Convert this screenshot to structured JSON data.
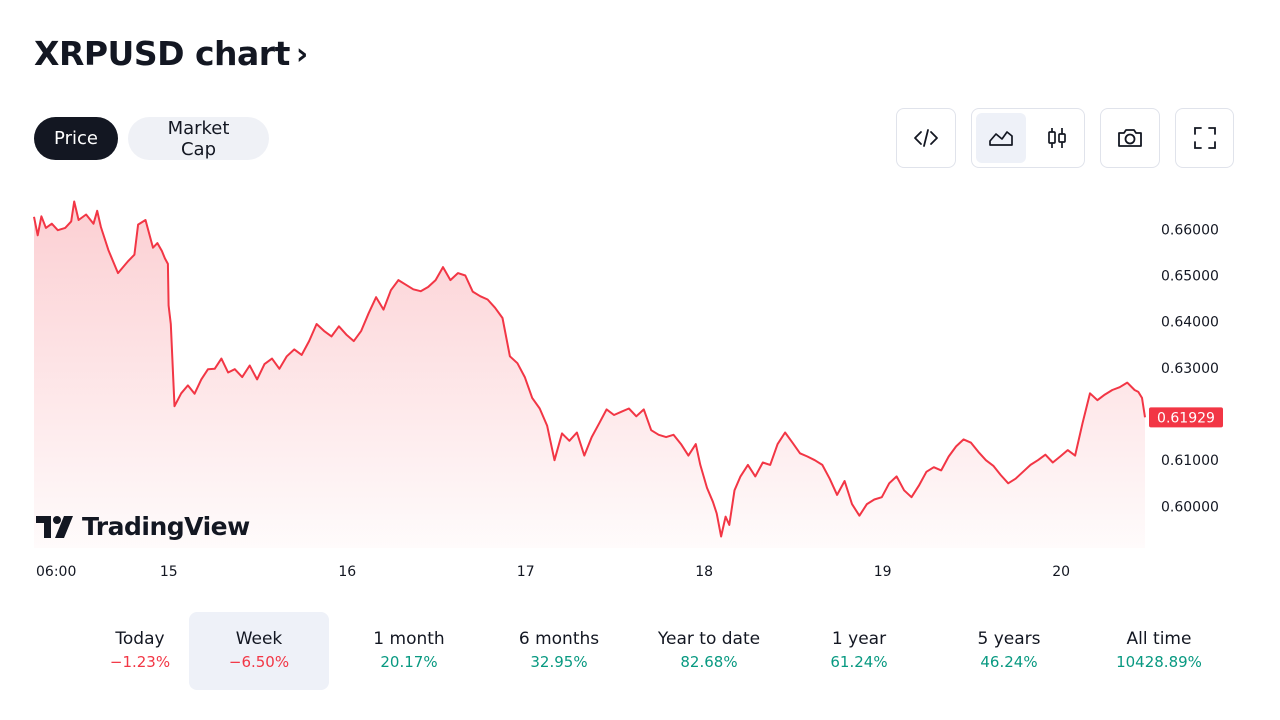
{
  "header": {
    "title": "XRPUSD chart",
    "chevron": "›"
  },
  "tabs": [
    {
      "label": "Price",
      "active": true
    },
    {
      "label": "Market Cap",
      "active": false
    }
  ],
  "toolbar": {
    "embed_icon": "code-icon",
    "line_icon": "area-chart-icon",
    "candle_icon": "candlestick-icon",
    "snapshot_icon": "camera-icon",
    "fullscreen_icon": "fullscreen-icon"
  },
  "brand": {
    "name": "TradingView"
  },
  "colors": {
    "line": "#f23645",
    "positive": "#089981",
    "negative": "#f23645",
    "dark": "#131722"
  },
  "chart_data": {
    "type": "area",
    "ylim": [
      0.591,
      0.6685
    ],
    "y_ticks": [
      {
        "value": 0.66,
        "label": "0.66000"
      },
      {
        "value": 0.65,
        "label": "0.65000"
      },
      {
        "value": 0.64,
        "label": "0.64000"
      },
      {
        "value": 0.63,
        "label": "0.63000"
      },
      {
        "value": 0.61,
        "label": "0.61000"
      },
      {
        "value": 0.6,
        "label": "0.60000"
      }
    ],
    "x_ticks": [
      {
        "t": 0,
        "label": "06:00"
      },
      {
        "t": 18,
        "label": "15"
      },
      {
        "t": 42,
        "label": "16"
      },
      {
        "t": 66,
        "label": "17"
      },
      {
        "t": 90,
        "label": "18"
      },
      {
        "t": 114,
        "label": "19"
      },
      {
        "t": 138,
        "label": "20"
      }
    ],
    "t_range": [
      0,
      149.4
    ],
    "last_price": {
      "value": 0.61929,
      "label": "0.61929"
    },
    "series": [
      {
        "values": [
          [
            0,
            0.6627
          ],
          [
            0.5,
            0.6587
          ],
          [
            1,
            0.6628
          ],
          [
            1.6,
            0.6603
          ],
          [
            2.4,
            0.6612
          ],
          [
            3.2,
            0.6598
          ],
          [
            4.2,
            0.6603
          ],
          [
            5,
            0.6617
          ],
          [
            5.4,
            0.666
          ],
          [
            6,
            0.662
          ],
          [
            7,
            0.6632
          ],
          [
            8,
            0.6612
          ],
          [
            8.5,
            0.664
          ],
          [
            9,
            0.6605
          ],
          [
            10,
            0.6555
          ],
          [
            11.3,
            0.6505
          ],
          [
            12.6,
            0.653
          ],
          [
            13.5,
            0.6545
          ],
          [
            14,
            0.661
          ],
          [
            15,
            0.662
          ],
          [
            16,
            0.656
          ],
          [
            16.6,
            0.657
          ],
          [
            17.2,
            0.6553
          ],
          [
            17.6,
            0.6537
          ],
          [
            18,
            0.6525
          ],
          [
            18.1,
            0.6435
          ],
          [
            18.4,
            0.6395
          ],
          [
            18.9,
            0.6217
          ],
          [
            19.8,
            0.6245
          ],
          [
            20.7,
            0.6262
          ],
          [
            21.6,
            0.6244
          ],
          [
            22.5,
            0.6275
          ],
          [
            23.4,
            0.6297
          ],
          [
            24.3,
            0.6298
          ],
          [
            25.2,
            0.632
          ],
          [
            26.1,
            0.629
          ],
          [
            27,
            0.6297
          ],
          [
            28,
            0.628
          ],
          [
            29,
            0.6305
          ],
          [
            30,
            0.6275
          ],
          [
            31,
            0.6308
          ],
          [
            32,
            0.632
          ],
          [
            33,
            0.6298
          ],
          [
            34,
            0.6325
          ],
          [
            35,
            0.634
          ],
          [
            36,
            0.6328
          ],
          [
            37,
            0.6358
          ],
          [
            38,
            0.6395
          ],
          [
            39,
            0.638
          ],
          [
            40,
            0.6368
          ],
          [
            41,
            0.639
          ],
          [
            42,
            0.6372
          ],
          [
            43,
            0.6358
          ],
          [
            44,
            0.638
          ],
          [
            45,
            0.6418
          ],
          [
            46,
            0.6453
          ],
          [
            47,
            0.6426
          ],
          [
            48,
            0.6468
          ],
          [
            49,
            0.649
          ],
          [
            50,
            0.648
          ],
          [
            51,
            0.647
          ],
          [
            52,
            0.6466
          ],
          [
            53,
            0.6475
          ],
          [
            54,
            0.649
          ],
          [
            55,
            0.6518
          ],
          [
            56,
            0.649
          ],
          [
            57,
            0.6505
          ],
          [
            58,
            0.65
          ],
          [
            59,
            0.6465
          ],
          [
            60,
            0.6455
          ],
          [
            61,
            0.6448
          ],
          [
            62,
            0.643
          ],
          [
            63,
            0.6408
          ],
          [
            64,
            0.6325
          ],
          [
            65,
            0.631
          ],
          [
            66,
            0.628
          ],
          [
            67,
            0.6235
          ],
          [
            68,
            0.6212
          ],
          [
            69,
            0.6175
          ],
          [
            70,
            0.61
          ],
          [
            71,
            0.6158
          ],
          [
            72,
            0.6142
          ],
          [
            73,
            0.616
          ],
          [
            74,
            0.611
          ],
          [
            75,
            0.615
          ],
          [
            76,
            0.618
          ],
          [
            77,
            0.621
          ],
          [
            78,
            0.6198
          ],
          [
            79,
            0.6205
          ],
          [
            80,
            0.6212
          ],
          [
            81,
            0.6195
          ],
          [
            82,
            0.621
          ],
          [
            83,
            0.6165
          ],
          [
            84,
            0.6155
          ],
          [
            85,
            0.615
          ],
          [
            86,
            0.6155
          ],
          [
            87,
            0.6135
          ],
          [
            88,
            0.611
          ],
          [
            89,
            0.6135
          ],
          [
            89.6,
            0.609
          ],
          [
            90.5,
            0.604
          ],
          [
            91.3,
            0.601
          ],
          [
            91.8,
            0.5985
          ],
          [
            92.4,
            0.5935
          ],
          [
            93,
            0.5978
          ],
          [
            93.5,
            0.596
          ],
          [
            94.2,
            0.6035
          ],
          [
            95,
            0.6065
          ],
          [
            96,
            0.609
          ],
          [
            97,
            0.6065
          ],
          [
            98,
            0.6095
          ],
          [
            99,
            0.609
          ],
          [
            100,
            0.6135
          ],
          [
            101,
            0.616
          ],
          [
            102,
            0.6138
          ],
          [
            103,
            0.6115
          ],
          [
            104,
            0.6108
          ],
          [
            105,
            0.61
          ],
          [
            106,
            0.609
          ],
          [
            107,
            0.606
          ],
          [
            108,
            0.6025
          ],
          [
            109,
            0.6055
          ],
          [
            110,
            0.6005
          ],
          [
            111,
            0.598
          ],
          [
            112,
            0.6005
          ],
          [
            113,
            0.6015
          ],
          [
            114,
            0.602
          ],
          [
            115,
            0.605
          ],
          [
            116,
            0.6065
          ],
          [
            117,
            0.6035
          ],
          [
            118,
            0.602
          ],
          [
            119,
            0.6045
          ],
          [
            120,
            0.6075
          ],
          [
            121,
            0.6085
          ],
          [
            122,
            0.6078
          ],
          [
            123,
            0.6108
          ],
          [
            124,
            0.613
          ],
          [
            125,
            0.6145
          ],
          [
            126,
            0.6138
          ],
          [
            127,
            0.6118
          ],
          [
            128,
            0.61
          ],
          [
            129,
            0.6088
          ],
          [
            130,
            0.6068
          ],
          [
            131,
            0.605
          ],
          [
            132,
            0.606
          ],
          [
            133,
            0.6075
          ],
          [
            134,
            0.609
          ],
          [
            135,
            0.61
          ],
          [
            136,
            0.6112
          ],
          [
            137,
            0.6095
          ],
          [
            138,
            0.6108
          ],
          [
            139,
            0.6122
          ],
          [
            140,
            0.611
          ],
          [
            141,
            0.618
          ],
          [
            142,
            0.6245
          ],
          [
            143,
            0.623
          ],
          [
            144,
            0.6242
          ],
          [
            145,
            0.6252
          ],
          [
            146,
            0.6258
          ],
          [
            147,
            0.6268
          ],
          [
            148,
            0.6252
          ],
          [
            148.5,
            0.6248
          ],
          [
            149,
            0.6235
          ],
          [
            149.4,
            0.6193
          ]
        ]
      }
    ]
  },
  "periods": [
    {
      "label": "Today",
      "value": "−1.23%",
      "trend": "neg",
      "selected": false
    },
    {
      "label": "Week",
      "value": "−6.50%",
      "trend": "neg",
      "selected": true
    },
    {
      "label": "1 month",
      "value": "20.17%",
      "trend": "pos",
      "selected": false
    },
    {
      "label": "6 months",
      "value": "32.95%",
      "trend": "pos",
      "selected": false
    },
    {
      "label": "Year to date",
      "value": "82.68%",
      "trend": "pos",
      "selected": false
    },
    {
      "label": "1 year",
      "value": "61.24%",
      "trend": "pos",
      "selected": false
    },
    {
      "label": "5 years",
      "value": "46.24%",
      "trend": "pos",
      "selected": false
    },
    {
      "label": "All time",
      "value": "10428.89%",
      "trend": "pos",
      "selected": false
    }
  ]
}
